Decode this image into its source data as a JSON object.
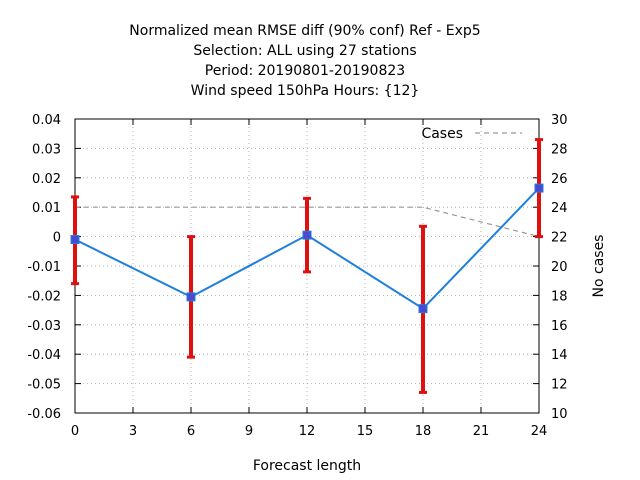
{
  "chart_data": {
    "type": "line",
    "title_lines": [
      "Normalized mean RMSE diff (90% conf) Ref - Exp5",
      "Selection: ALL using    27 stations",
      "Period: 20190801-20190823",
      "Wind speed 150hPa   Hours: {12}"
    ],
    "xlabel": "Forecast length",
    "ylabel_right": "No cases",
    "xlim": [
      0,
      24
    ],
    "ylim": [
      -0.06,
      0.04
    ],
    "y2lim": [
      10,
      30
    ],
    "x_ticks": [
      0,
      3,
      6,
      9,
      12,
      15,
      18,
      21,
      24
    ],
    "y_ticks": [
      -0.06,
      -0.05,
      -0.04,
      -0.03,
      -0.02,
      -0.01,
      0,
      0.01,
      0.02,
      0.03,
      0.04
    ],
    "y_tick_labels": [
      "-0.06",
      "-0.05",
      "-0.04",
      "-0.03",
      "-0.02",
      "-0.01",
      "0",
      "0.01",
      "0.02",
      "0.03",
      "0.04"
    ],
    "y2_ticks": [
      10,
      12,
      14,
      16,
      18,
      20,
      22,
      24,
      26,
      28,
      30
    ],
    "grid": true,
    "series": [
      {
        "x": [
          0,
          6,
          12,
          18,
          24
        ],
        "values": [
          -0.001,
          -0.0205,
          0.0005,
          -0.0245,
          0.0165
        ],
        "err_low": [
          -0.016,
          -0.041,
          -0.012,
          -0.053,
          0.0
        ],
        "err_high": [
          0.0135,
          0.0,
          0.013,
          0.0035,
          0.033
        ],
        "color": "#1f7fdc",
        "marker_color": "#4a4ad0",
        "errorbar_color": "#e01010"
      },
      {
        "name": "Cases",
        "axis": "right",
        "x": [
          0,
          6,
          12,
          18,
          21,
          24
        ],
        "values": [
          24,
          24,
          24,
          24,
          23,
          22
        ],
        "color": "#999999",
        "dash": true
      }
    ],
    "legend": {
      "position": "top-right",
      "label": "Cases"
    }
  }
}
